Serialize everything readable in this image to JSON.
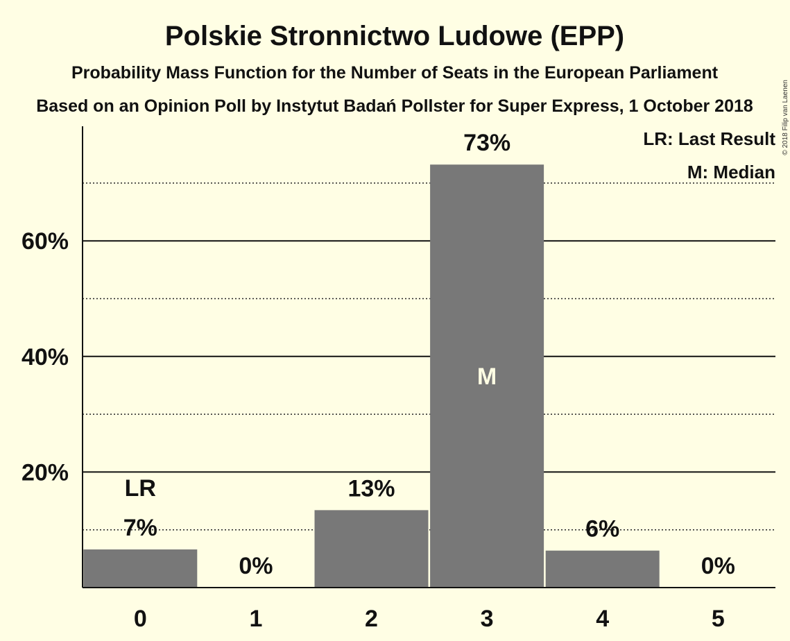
{
  "chart_data": {
    "type": "bar",
    "title": "Polskie Stronnictwo Ludowe (EPP)",
    "subtitle": "Probability Mass Function for the Number of Seats in the European Parliament",
    "subtitle2": "Based on an Opinion Poll by Instytut Badań Pollster for Super Express, 1 October 2018",
    "copyright": "© 2018 Filip van Laenen",
    "categories": [
      "0",
      "1",
      "2",
      "3",
      "4",
      "5"
    ],
    "values": [
      6.6,
      0,
      13.4,
      73.2,
      6.4,
      0
    ],
    "data_labels": [
      "7%",
      "0%",
      "13%",
      "73%",
      "6%",
      "0%"
    ],
    "last_result_index": 0,
    "last_result_label": "LR",
    "median_index": 3,
    "median_label": "M",
    "legend": [
      "LR: Last Result",
      "M: Median"
    ],
    "legend_position": "top-right",
    "ylim": [
      0,
      80
    ],
    "yticks": [
      20,
      40,
      60
    ],
    "ytick_labels": [
      "20%",
      "40%",
      "60%"
    ],
    "minor_gridlines": [
      10,
      30,
      50,
      70
    ],
    "grid": true,
    "bar_color": "#787878",
    "background_color": "#FFFEE4"
  }
}
